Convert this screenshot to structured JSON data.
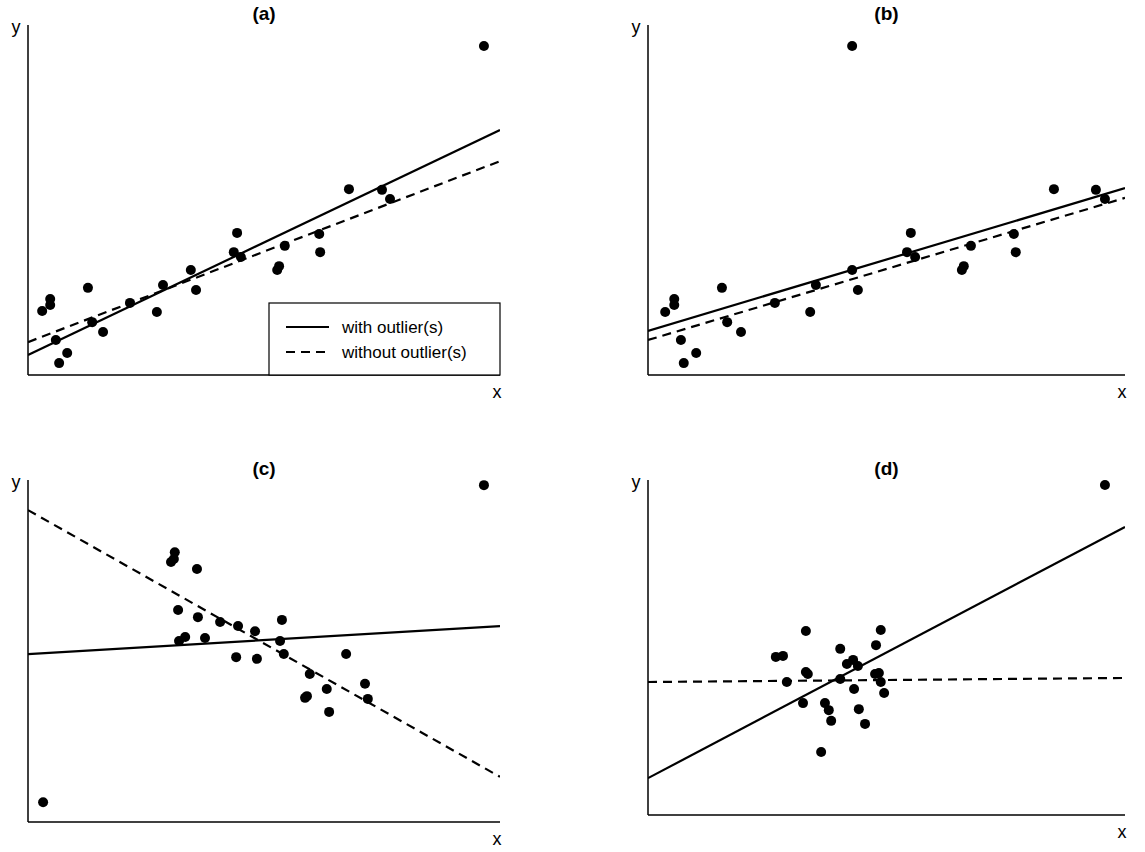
{
  "chart_data": [
    {
      "type": "scatter",
      "title": "(a)",
      "x_label": "x",
      "y_label": "y",
      "xlim": [
        0,
        100
      ],
      "ylim": [
        0,
        100
      ],
      "tick_labels": false,
      "legend": "lower right",
      "series": [
        {
          "type": "scatter",
          "marker": "circle",
          "color": "#000000",
          "x": [
            3.0,
            4.7,
            4.7,
            5.9,
            6.6,
            8.3,
            12.7,
            13.6,
            15.9,
            21.6,
            27.3,
            28.6,
            34.5,
            35.6,
            43.6,
            44.3,
            45.1,
            52.8,
            53.2,
            54.4,
            61.7,
            61.9,
            68.0,
            75.0,
            76.7,
            96.6
          ],
          "values": [
            18.3,
            20.0,
            21.7,
            10.0,
            3.4,
            6.3,
            24.9,
            15.1,
            12.3,
            20.6,
            18.0,
            25.7,
            30.0,
            24.3,
            35.1,
            40.6,
            33.7,
            30.0,
            31.1,
            36.9,
            40.3,
            35.1,
            53.1,
            52.9,
            50.3,
            94.0
          ]
        },
        {
          "name": "with outlier(s)",
          "type": "line",
          "line_style": "solid",
          "color": "#000000",
          "x": [
            0,
            100
          ],
          "values": [
            5.7,
            70.0
          ]
        },
        {
          "name": "without outlier(s)",
          "type": "line",
          "line_style": "dashed",
          "color": "#000000",
          "x": [
            0,
            100
          ],
          "values": [
            9.4,
            61.1
          ]
        }
      ]
    },
    {
      "type": "scatter",
      "title": "(b)",
      "x_label": "x",
      "y_label": "y",
      "xlim": [
        0,
        100
      ],
      "ylim": [
        0,
        100
      ],
      "tick_labels": false,
      "series": [
        {
          "type": "scatter",
          "marker": "circle",
          "color": "#000000",
          "x": [
            3.6,
            5.5,
            5.5,
            6.9,
            7.5,
            10.1,
            15.5,
            16.6,
            19.5,
            26.6,
            34.0,
            35.2,
            42.8,
            44.0,
            54.3,
            55.1,
            56.0,
            65.8,
            66.2,
            67.7,
            76.7,
            77.1,
            85.1,
            93.9,
            95.8,
            42.8
          ],
          "values": [
            18.0,
            20.0,
            21.7,
            10.0,
            3.4,
            6.3,
            24.9,
            15.1,
            12.3,
            20.6,
            18.0,
            25.7,
            30.0,
            24.3,
            35.1,
            40.6,
            33.7,
            30.0,
            31.1,
            36.9,
            40.3,
            35.1,
            53.1,
            52.9,
            50.3,
            94.0
          ]
        },
        {
          "type": "line",
          "line_style": "solid",
          "color": "#000000",
          "x": [
            0,
            100
          ],
          "values": [
            12.6,
            53.4
          ]
        },
        {
          "type": "line",
          "line_style": "dashed",
          "color": "#000000",
          "x": [
            0,
            100
          ],
          "values": [
            10.0,
            50.6
          ]
        }
      ]
    },
    {
      "type": "scatter",
      "title": "(c)",
      "x_label": "x",
      "y_label": "y",
      "xlim": [
        0,
        100
      ],
      "ylim": [
        0,
        100
      ],
      "tick_labels": false,
      "series": [
        {
          "type": "scatter",
          "marker": "circle",
          "color": "#000000",
          "x": [
            3.2,
            96.6,
            30.3,
            31.1,
            30.9,
            35.8,
            31.8,
            32.0,
            33.3,
            36.0,
            37.5,
            40.7,
            44.5,
            44.1,
            48.1,
            48.5,
            53.4,
            53.8,
            54.2,
            58.7,
            59.1,
            59.7,
            63.3,
            63.8,
            67.4,
            71.4,
            72.0
          ],
          "values": [
            5.8,
            98.5,
            76.0,
            78.9,
            76.9,
            74.0,
            62.0,
            52.9,
            54.1,
            59.9,
            53.8,
            58.5,
            57.3,
            48.2,
            55.8,
            47.7,
            52.9,
            59.1,
            49.1,
            36.3,
            36.8,
            43.3,
            38.9,
            32.2,
            49.1,
            40.4,
            36.0
          ]
        },
        {
          "type": "line",
          "line_style": "solid",
          "color": "#000000",
          "x": [
            0,
            100
          ],
          "values": [
            49.1,
            57.3
          ]
        },
        {
          "type": "line",
          "line_style": "dashed",
          "color": "#000000",
          "x": [
            0,
            100
          ],
          "values": [
            91.2,
            13.2
          ]
        }
      ]
    },
    {
      "type": "scatter",
      "title": "(d)",
      "x_label": "x",
      "y_label": "y",
      "xlim": [
        0,
        100
      ],
      "ylim": [
        0,
        100
      ],
      "tick_labels": false,
      "series": [
        {
          "type": "scatter",
          "marker": "circle",
          "color": "#000000",
          "x": [
            26.8,
            28.3,
            29.1,
            33.1,
            33.1,
            33.5,
            32.5,
            36.3,
            37.1,
            37.9,
            38.4,
            40.3,
            40.3,
            41.7,
            43.0,
            43.2,
            44.0,
            44.2,
            45.5,
            47.8,
            48.8,
            48.4,
            48.8,
            49.5,
            47.6,
            95.8
          ],
          "values": [
            47.2,
            47.5,
            39.7,
            54.9,
            42.7,
            42.1,
            33.4,
            18.8,
            33.4,
            31.3,
            28.1,
            49.6,
            40.6,
            45.1,
            46.3,
            37.6,
            44.5,
            31.6,
            27.2,
            50.7,
            55.2,
            42.4,
            39.7,
            36.4,
            42.1,
            98.5
          ]
        },
        {
          "type": "line",
          "line_style": "solid",
          "color": "#000000",
          "x": [
            0,
            100
          ],
          "values": [
            11.0,
            86.0
          ]
        },
        {
          "type": "line",
          "line_style": "dashed",
          "color": "#000000",
          "x": [
            0,
            100
          ],
          "values": [
            39.7,
            40.9
          ]
        }
      ]
    }
  ]
}
